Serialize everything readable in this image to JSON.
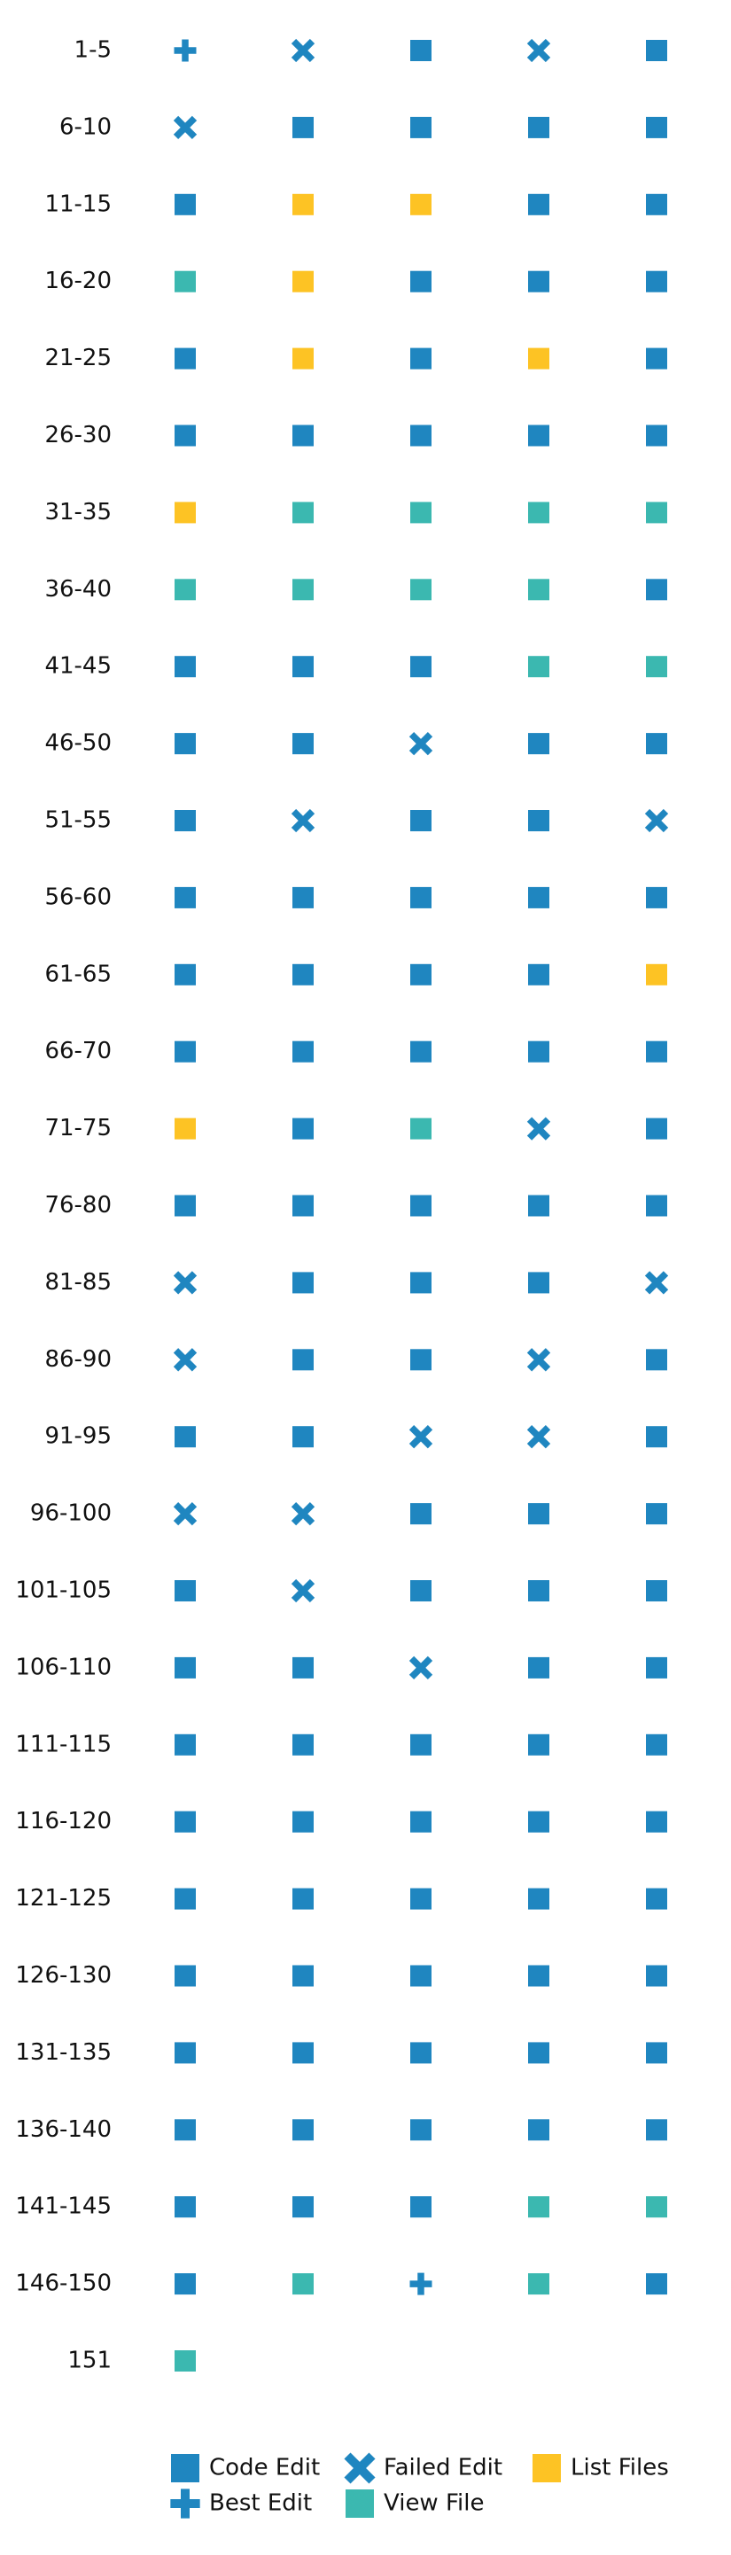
{
  "chart_data": {
    "type": "scatter",
    "title": "",
    "xlabel": "",
    "ylabel": "",
    "grid": false,
    "legend_position": "bottom",
    "colors": {
      "code_edit": "#1f86c0",
      "best_edit": "#1f86c0",
      "failed_edit": "#1f86c0",
      "view_file": "#3bb8b0",
      "list_files": "#fdc324"
    },
    "action_legend": [
      {
        "key": "code_edit",
        "label": "Code Edit",
        "marker": "square",
        "color": "#1f86c0"
      },
      {
        "key": "failed_edit",
        "label": "Failed Edit",
        "marker": "x",
        "color": "#1f86c0"
      },
      {
        "key": "list_files",
        "label": "List Files",
        "marker": "square",
        "color": "#fdc324"
      },
      {
        "key": "best_edit",
        "label": "Best Edit",
        "marker": "plus",
        "color": "#1f86c0"
      },
      {
        "key": "view_file",
        "label": "View File",
        "marker": "square",
        "color": "#3bb8b0"
      }
    ],
    "row_labels": [
      "1-5",
      "6-10",
      "11-15",
      "16-20",
      "21-25",
      "26-30",
      "31-35",
      "36-40",
      "41-45",
      "46-50",
      "51-55",
      "56-60",
      "61-65",
      "66-70",
      "71-75",
      "76-80",
      "81-85",
      "86-90",
      "91-95",
      "96-100",
      "101-105",
      "106-110",
      "111-115",
      "116-120",
      "121-125",
      "126-130",
      "131-135",
      "136-140",
      "141-145",
      "146-150",
      "151"
    ],
    "steps": [
      [
        "B",
        "F",
        "C",
        "F",
        "C"
      ],
      [
        "F",
        "C",
        "C",
        "C",
        "C"
      ],
      [
        "C",
        "L",
        "L",
        "C",
        "C"
      ],
      [
        "V",
        "L",
        "C",
        "C",
        "C"
      ],
      [
        "C",
        "L",
        "C",
        "L",
        "C"
      ],
      [
        "C",
        "C",
        "C",
        "C",
        "C"
      ],
      [
        "L",
        "V",
        "V",
        "V",
        "V"
      ],
      [
        "V",
        "V",
        "V",
        "V",
        "C"
      ],
      [
        "C",
        "C",
        "C",
        "V",
        "V"
      ],
      [
        "C",
        "C",
        "F",
        "C",
        "C"
      ],
      [
        "C",
        "F",
        "C",
        "C",
        "F"
      ],
      [
        "C",
        "C",
        "C",
        "C",
        "C"
      ],
      [
        "C",
        "C",
        "C",
        "C",
        "L"
      ],
      [
        "C",
        "C",
        "C",
        "C",
        "C"
      ],
      [
        "L",
        "C",
        "V",
        "F",
        "C"
      ],
      [
        "C",
        "C",
        "C",
        "C",
        "C"
      ],
      [
        "F",
        "C",
        "C",
        "C",
        "F"
      ],
      [
        "F",
        "C",
        "C",
        "F",
        "C"
      ],
      [
        "C",
        "C",
        "F",
        "F",
        "C"
      ],
      [
        "F",
        "F",
        "C",
        "C",
        "C"
      ],
      [
        "C",
        "F",
        "C",
        "C",
        "C"
      ],
      [
        "C",
        "C",
        "F",
        "C",
        "C"
      ],
      [
        "C",
        "C",
        "C",
        "C",
        "C"
      ],
      [
        "C",
        "C",
        "C",
        "C",
        "C"
      ],
      [
        "C",
        "C",
        "C",
        "C",
        "C"
      ],
      [
        "C",
        "C",
        "C",
        "C",
        "C"
      ],
      [
        "C",
        "C",
        "C",
        "C",
        "C"
      ],
      [
        "C",
        "C",
        "C",
        "C",
        "C"
      ],
      [
        "C",
        "C",
        "C",
        "V",
        "V"
      ],
      [
        "C",
        "V",
        "B",
        "V",
        "C"
      ],
      [
        "V"
      ]
    ],
    "code_map": {
      "C": "code_edit",
      "F": "failed_edit",
      "B": "best_edit",
      "V": "view_file",
      "L": "list_files"
    }
  }
}
